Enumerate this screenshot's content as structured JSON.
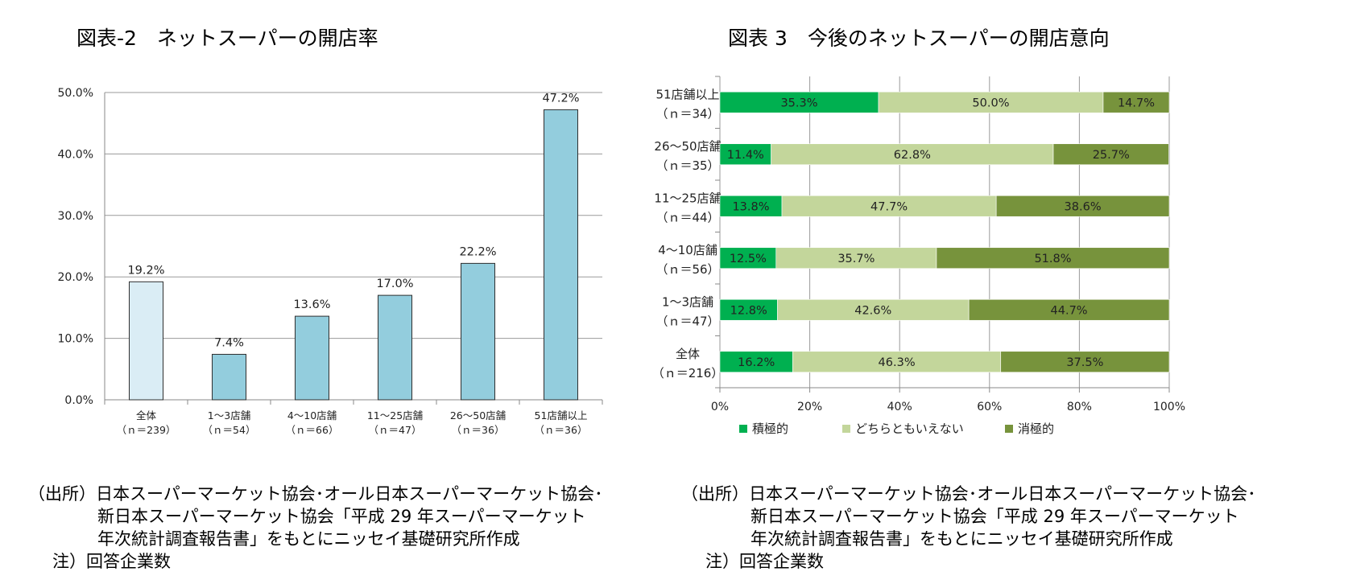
{
  "left": {
    "title": "図表-2　ネットスーパーの開店率",
    "source": {
      "line1": "（出所）日本スーパーマーケット協会･オール日本スーパーマーケット協会･",
      "line2": "新日本スーパーマーケット協会「平成 29 年スーパーマーケット",
      "line3": "年次統計調査報告書」をもとにニッセイ基礎研究所作成",
      "note": "注）回答企業数"
    }
  },
  "right": {
    "title": "図表 3　今後のネットスーパーの開店意向",
    "source": {
      "line1": "（出所）日本スーパーマーケット協会･オール日本スーパーマーケット協会･",
      "line2": "新日本スーパーマーケット協会「平成 29 年スーパーマーケット",
      "line3": "年次統計調査報告書」をもとにニッセイ基礎研究所作成",
      "note": "注）回答企業数"
    }
  },
  "chart_data": [
    {
      "type": "bar",
      "title": "図表-2　ネットスーパーの開店率",
      "categories": [
        [
          "全体",
          "（ｎ＝239）"
        ],
        [
          "1～3店舗",
          "（ｎ＝54）"
        ],
        [
          "4～10店舗",
          "（ｎ＝66）"
        ],
        [
          "11～25店舗",
          "（ｎ＝47）"
        ],
        [
          "26～50店舗",
          "（ｎ＝36）"
        ],
        [
          "51店舗以上",
          "（ｎ＝36）"
        ]
      ],
      "values": [
        19.2,
        7.4,
        13.6,
        17.0,
        22.2,
        47.2
      ],
      "value_labels": [
        "19.2%",
        "7.4%",
        "13.6%",
        "17.0%",
        "22.2%",
        "47.2%"
      ],
      "yticks": [
        "0.0%",
        "10.0%",
        "20.0%",
        "30.0%",
        "40.0%",
        "50.0%"
      ],
      "ylim": [
        0,
        50
      ],
      "grid": true,
      "colors": {
        "first": "#daedf5",
        "bars": "#93cddd",
        "stroke": "#2f2f2f"
      }
    },
    {
      "type": "bar",
      "orientation": "horizontal-stacked-100",
      "title": "図表 3　今後のネットスーパーの開店意向",
      "categories": [
        [
          "51店舗以上",
          "（ｎ＝34）"
        ],
        [
          "26～50店舗",
          "（ｎ＝35）"
        ],
        [
          "11～25店舗",
          "（ｎ＝44）"
        ],
        [
          "4～10店舗",
          "（ｎ＝56）"
        ],
        [
          "1～3店舗",
          "（ｎ＝47）"
        ],
        [
          "全体",
          "（ｎ＝216）"
        ]
      ],
      "series": [
        {
          "name": "積極的",
          "color": "#00b050",
          "values": [
            35.3,
            11.4,
            13.8,
            12.5,
            12.8,
            16.2
          ],
          "labels": [
            "35.3%",
            "11.4%",
            "13.8%",
            "12.5%",
            "12.8%",
            "16.2%"
          ]
        },
        {
          "name": "どちらともいえない",
          "color": "#c3d69b",
          "values": [
            50.0,
            62.8,
            47.7,
            35.7,
            42.6,
            46.3
          ],
          "labels": [
            "50.0%",
            "62.8%",
            "47.7%",
            "35.7%",
            "42.6%",
            "46.3%"
          ]
        },
        {
          "name": "消極的",
          "color": "#77933c",
          "values": [
            14.7,
            25.7,
            38.6,
            51.8,
            44.7,
            37.5
          ],
          "labels": [
            "14.7%",
            "25.7%",
            "38.6%",
            "51.8%",
            "44.7%",
            "37.5%"
          ]
        }
      ],
      "xticks": [
        "0%",
        "20%",
        "40%",
        "60%",
        "80%",
        "100%"
      ],
      "xlim": [
        0,
        100
      ],
      "grid": true,
      "legend": "bottom"
    }
  ]
}
